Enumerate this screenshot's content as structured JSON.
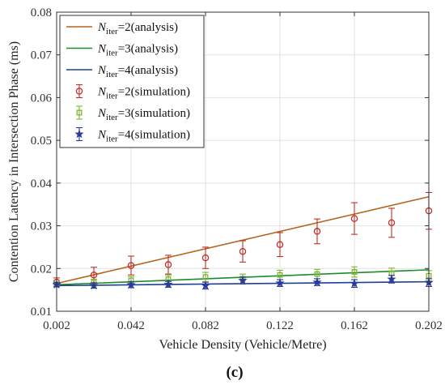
{
  "chart_data": {
    "type": "line",
    "xlabel": "Vehicle Density (Vehicle/Metre)",
    "ylabel": "Contention Latency in Intersection Phase (ms)",
    "panel_label": "(c)",
    "xlim": [
      0.002,
      0.202
    ],
    "ylim": [
      0.01,
      0.08
    ],
    "x_ticks": [
      0.002,
      0.042,
      0.082,
      0.122,
      0.162,
      0.202
    ],
    "x_tick_labels": [
      "0.002",
      "0.042",
      "0.082",
      "0.122",
      "0.162",
      "0.202"
    ],
    "y_ticks": [
      0.01,
      0.02,
      0.03,
      0.04,
      0.05,
      0.06,
      0.07,
      0.08
    ],
    "y_tick_labels": [
      "0.01",
      "0.02",
      "0.03",
      "0.04",
      "0.05",
      "0.06",
      "0.07",
      "0.08"
    ],
    "grid": true,
    "legend_position": "top-left",
    "analysis_series": [
      {
        "var": "N",
        "sub": "iter",
        "rest": "=2(analysis)",
        "color": "#b5651d",
        "x": [
          0.002,
          0.202
        ],
        "y": [
          0.0165,
          0.0368
        ]
      },
      {
        "var": "N",
        "sub": "iter",
        "rest": "=3(analysis)",
        "color": "#1e8a2e",
        "x": [
          0.002,
          0.202
        ],
        "y": [
          0.0162,
          0.0197
        ]
      },
      {
        "var": "N",
        "sub": "iter",
        "rest": "=4(analysis)",
        "color": "#1f3f99",
        "x": [
          0.002,
          0.202
        ],
        "y": [
          0.016,
          0.0169
        ]
      }
    ],
    "simulation_series": [
      {
        "var": "N",
        "sub": "iter",
        "rest": "=2(simulation)",
        "color": "#c0302a",
        "marker": "circle",
        "x": [
          0.002,
          0.022,
          0.042,
          0.062,
          0.082,
          0.102,
          0.122,
          0.142,
          0.162,
          0.182,
          0.202
        ],
        "y": [
          0.0168,
          0.0185,
          0.0207,
          0.0209,
          0.0225,
          0.024,
          0.0256,
          0.0287,
          0.0317,
          0.0307,
          0.0335
        ],
        "err": [
          0.001,
          0.0018,
          0.0022,
          0.0022,
          0.0025,
          0.0025,
          0.0028,
          0.0029,
          0.0037,
          0.0034,
          0.0043
        ]
      },
      {
        "var": "N",
        "sub": "iter",
        "rest": "=3(simulation)",
        "color": "#7cb82f",
        "marker": "square",
        "x": [
          0.002,
          0.022,
          0.042,
          0.062,
          0.082,
          0.102,
          0.122,
          0.142,
          0.162,
          0.182,
          0.202
        ],
        "y": [
          0.0163,
          0.0167,
          0.0172,
          0.0175,
          0.018,
          0.0176,
          0.0185,
          0.0187,
          0.0192,
          0.0189,
          0.0183
        ],
        "err": [
          0.0006,
          0.0008,
          0.0009,
          0.001,
          0.0011,
          0.0011,
          0.0011,
          0.0011,
          0.0012,
          0.0012,
          0.0012
        ]
      },
      {
        "var": "N",
        "sub": "iter",
        "rest": "=4(simulation)",
        "color": "#2a3a9e",
        "marker": "star",
        "x": [
          0.002,
          0.022,
          0.042,
          0.062,
          0.082,
          0.102,
          0.122,
          0.142,
          0.162,
          0.182,
          0.202
        ],
        "y": [
          0.0162,
          0.016,
          0.0162,
          0.0163,
          0.016,
          0.0172,
          0.0166,
          0.0168,
          0.0165,
          0.0175,
          0.0167
        ],
        "err": [
          0.0005,
          0.0006,
          0.0007,
          0.0007,
          0.0008,
          0.0008,
          0.0008,
          0.0008,
          0.0009,
          0.0009,
          0.0009
        ]
      }
    ]
  }
}
